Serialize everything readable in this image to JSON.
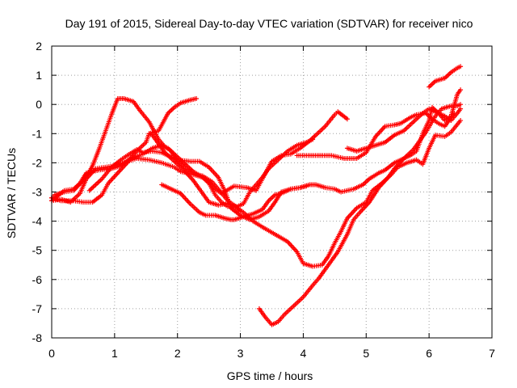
{
  "chart_data": {
    "type": "scatter",
    "title": "Day 191 of 2015, Sidereal Day-to-day VTEC variation (SDTVAR) for receiver nico",
    "xlabel": "GPS time / hours",
    "ylabel": "SDTVAR / TECUs",
    "xlim": [
      0,
      7
    ],
    "ylim": [
      -8,
      2
    ],
    "xticks": [
      "0",
      "1",
      "2",
      "3",
      "4",
      "5",
      "6",
      "7"
    ],
    "yticks": [
      "2",
      "1",
      "0",
      "-1",
      "-2",
      "-3",
      "-4",
      "-5",
      "-6",
      "-7",
      "-8"
    ],
    "grid": true,
    "marker": "plus",
    "color": "#ff0000",
    "series": [
      {
        "points": [
          [
            0.0,
            -3.3
          ],
          [
            0.2,
            -2.95
          ],
          [
            0.35,
            -2.9
          ],
          [
            0.45,
            -2.7
          ],
          [
            0.55,
            -2.35
          ],
          [
            0.75,
            -2.25
          ],
          [
            0.95,
            -2.2
          ],
          [
            1.1,
            -2.1
          ],
          [
            1.25,
            -1.85
          ],
          [
            1.45,
            -1.7
          ],
          [
            1.6,
            -1.5
          ],
          [
            1.75,
            -1.4
          ],
          [
            1.85,
            -1.5
          ],
          [
            2.05,
            -1.9
          ],
          [
            2.25,
            -2.3
          ],
          [
            2.45,
            -2.55
          ],
          [
            2.6,
            -2.9
          ],
          [
            2.7,
            -3.05
          ],
          [
            2.9,
            -2.8
          ],
          [
            3.1,
            -2.85
          ],
          [
            3.25,
            -2.95
          ],
          [
            3.35,
            -2.55
          ],
          [
            3.5,
            -1.95
          ],
          [
            3.65,
            -1.75
          ],
          [
            3.8,
            -1.7
          ],
          [
            3.95,
            -1.5
          ],
          [
            4.1,
            -1.25
          ],
          [
            4.2,
            -1.05
          ],
          [
            4.35,
            -0.75
          ],
          [
            4.5,
            -0.35
          ],
          [
            4.55,
            -0.25
          ],
          [
            4.7,
            -0.5
          ]
        ]
      },
      {
        "points": [
          [
            0.0,
            -3.3
          ],
          [
            0.15,
            -3.25
          ],
          [
            0.3,
            -3.35
          ],
          [
            0.45,
            -3.05
          ],
          [
            0.55,
            -2.55
          ],
          [
            0.7,
            -2.2
          ],
          [
            0.85,
            -2.15
          ],
          [
            1.0,
            -2.1
          ],
          [
            1.15,
            -2.0
          ],
          [
            1.35,
            -1.85
          ],
          [
            1.55,
            -1.9
          ],
          [
            1.75,
            -2.0
          ],
          [
            1.95,
            -2.15
          ],
          [
            2.05,
            -2.3
          ],
          [
            2.25,
            -2.4
          ],
          [
            2.4,
            -2.5
          ],
          [
            2.5,
            -2.7
          ],
          [
            2.6,
            -3.1
          ],
          [
            2.7,
            -3.35
          ],
          [
            2.8,
            -3.5
          ],
          [
            2.95,
            -3.55
          ],
          [
            3.05,
            -3.7
          ],
          [
            3.2,
            -4.0
          ],
          [
            3.35,
            -4.2
          ],
          [
            3.55,
            -4.45
          ],
          [
            3.75,
            -4.7
          ],
          [
            3.9,
            -5.05
          ],
          [
            4.0,
            -5.45
          ],
          [
            4.15,
            -5.55
          ],
          [
            4.3,
            -5.5
          ],
          [
            4.4,
            -5.2
          ],
          [
            4.5,
            -4.75
          ],
          [
            4.6,
            -4.35
          ],
          [
            4.7,
            -3.9
          ],
          [
            4.85,
            -3.55
          ],
          [
            5.0,
            -3.35
          ],
          [
            5.1,
            -2.95
          ],
          [
            5.25,
            -2.7
          ],
          [
            5.4,
            -2.4
          ],
          [
            5.5,
            -2.15
          ],
          [
            5.65,
            -2.0
          ],
          [
            5.8,
            -1.9
          ],
          [
            5.9,
            -2.05
          ],
          [
            6.0,
            -1.5
          ],
          [
            6.1,
            -1.05
          ],
          [
            6.25,
            -1.1
          ],
          [
            6.35,
            -0.95
          ],
          [
            6.5,
            -0.55
          ]
        ]
      },
      {
        "points": [
          [
            0.0,
            -3.2
          ],
          [
            0.15,
            -3.3
          ],
          [
            0.35,
            -3.3
          ],
          [
            0.5,
            -3.35
          ],
          [
            0.65,
            -3.35
          ],
          [
            0.8,
            -3.1
          ],
          [
            0.9,
            -2.7
          ],
          [
            1.05,
            -2.35
          ],
          [
            1.2,
            -2.0
          ],
          [
            1.35,
            -1.6
          ],
          [
            1.5,
            -1.3
          ],
          [
            1.55,
            -1.0
          ],
          [
            1.6,
            -1.05
          ],
          [
            1.7,
            -1.35
          ],
          [
            1.8,
            -1.65
          ],
          [
            1.95,
            -1.95
          ],
          [
            2.1,
            -2.25
          ],
          [
            2.25,
            -2.6
          ],
          [
            2.4,
            -3.05
          ],
          [
            2.5,
            -3.35
          ],
          [
            2.65,
            -3.45
          ],
          [
            2.8,
            -3.4
          ],
          [
            2.95,
            -3.5
          ],
          [
            3.05,
            -3.4
          ],
          [
            3.15,
            -3.0
          ],
          [
            3.25,
            -2.75
          ],
          [
            3.35,
            -2.5
          ],
          [
            3.45,
            -2.2
          ],
          [
            3.6,
            -1.9
          ],
          [
            3.75,
            -1.6
          ],
          [
            3.9,
            -1.4
          ],
          [
            4.05,
            -1.3
          ],
          [
            4.15,
            -1.2
          ]
        ]
      },
      {
        "points": [
          [
            0.0,
            -3.2
          ],
          [
            0.05,
            -3.1
          ],
          [
            0.2,
            -3.0
          ],
          [
            0.35,
            -2.95
          ],
          [
            0.5,
            -2.6
          ],
          [
            0.6,
            -2.3
          ],
          [
            0.65,
            -2.1
          ],
          [
            0.75,
            -1.55
          ],
          [
            0.85,
            -0.95
          ],
          [
            0.95,
            -0.35
          ],
          [
            1.05,
            0.2
          ],
          [
            1.15,
            0.2
          ],
          [
            1.3,
            0.1
          ],
          [
            1.4,
            -0.2
          ],
          [
            1.55,
            -0.6
          ],
          [
            1.7,
            -1.2
          ],
          [
            1.8,
            -1.45
          ],
          [
            1.9,
            -1.6
          ],
          [
            2.0,
            -1.95
          ],
          [
            2.1,
            -2.15
          ],
          [
            2.2,
            -2.3
          ],
          [
            2.3,
            -2.4
          ],
          [
            2.4,
            -2.45
          ],
          [
            2.55,
            -2.65
          ],
          [
            2.65,
            -2.9
          ],
          [
            2.8,
            -3.3
          ],
          [
            2.9,
            -3.45
          ],
          [
            3.0,
            -3.65
          ]
        ]
      },
      {
        "points": [
          [
            0.6,
            -2.95
          ],
          [
            0.8,
            -2.55
          ],
          [
            0.95,
            -2.15
          ],
          [
            1.1,
            -1.9
          ],
          [
            1.2,
            -1.75
          ],
          [
            1.35,
            -1.55
          ],
          [
            1.45,
            -1.65
          ],
          [
            1.6,
            -1.6
          ],
          [
            1.75,
            -1.65
          ],
          [
            1.85,
            -1.75
          ],
          [
            2.0,
            -1.9
          ],
          [
            2.2,
            -1.95
          ],
          [
            2.35,
            -1.95
          ],
          [
            2.5,
            -2.15
          ],
          [
            2.65,
            -2.5
          ],
          [
            2.75,
            -2.95
          ],
          [
            2.85,
            -3.55
          ],
          [
            3.0,
            -3.8
          ],
          [
            3.15,
            -3.95
          ],
          [
            3.3,
            -3.85
          ],
          [
            3.45,
            -3.65
          ],
          [
            3.55,
            -3.35
          ],
          [
            3.65,
            -3.0
          ],
          [
            3.8,
            -2.9
          ],
          [
            3.95,
            -2.85
          ],
          [
            4.1,
            -2.75
          ],
          [
            4.2,
            -2.75
          ],
          [
            4.35,
            -2.85
          ],
          [
            4.5,
            -2.9
          ],
          [
            4.6,
            -3.0
          ],
          [
            4.8,
            -2.9
          ],
          [
            4.95,
            -2.75
          ],
          [
            5.05,
            -2.55
          ],
          [
            5.2,
            -2.35
          ],
          [
            5.3,
            -2.25
          ],
          [
            5.45,
            -2.0
          ],
          [
            5.6,
            -1.85
          ],
          [
            5.7,
            -1.75
          ],
          [
            5.8,
            -1.6
          ],
          [
            5.9,
            -1.0
          ],
          [
            6.0,
            -0.55
          ],
          [
            6.05,
            -0.1
          ],
          [
            6.15,
            -0.3
          ],
          [
            6.25,
            -0.55
          ],
          [
            6.35,
            -0.4
          ],
          [
            6.45,
            0.35
          ],
          [
            6.5,
            0.5
          ]
        ]
      },
      {
        "points": [
          [
            1.75,
            -2.75
          ],
          [
            1.9,
            -2.9
          ],
          [
            2.05,
            -3.05
          ],
          [
            2.2,
            -3.4
          ],
          [
            2.35,
            -3.7
          ],
          [
            2.45,
            -3.8
          ],
          [
            2.6,
            -3.8
          ],
          [
            2.75,
            -3.9
          ],
          [
            2.85,
            -3.95
          ],
          [
            2.9,
            -3.95
          ],
          [
            3.05,
            -3.85
          ],
          [
            3.2,
            -3.75
          ],
          [
            3.35,
            -3.6
          ],
          [
            3.45,
            -3.3
          ],
          [
            3.55,
            -3.1
          ],
          [
            3.65,
            -3.05
          ],
          [
            3.8,
            -2.9
          ],
          [
            3.95,
            -2.85
          ],
          [
            4.05,
            -2.8
          ]
        ]
      },
      {
        "points": [
          [
            1.55,
            -1.0
          ],
          [
            1.7,
            -0.9
          ],
          [
            1.85,
            -0.3
          ],
          [
            1.95,
            -0.1
          ],
          [
            2.05,
            0.05
          ],
          [
            2.2,
            0.15
          ],
          [
            2.3,
            0.2
          ]
        ]
      },
      {
        "points": [
          [
            3.3,
            -7.0
          ],
          [
            3.4,
            -7.3
          ],
          [
            3.5,
            -7.55
          ],
          [
            3.6,
            -7.45
          ],
          [
            3.7,
            -7.2
          ],
          [
            3.85,
            -6.9
          ],
          [
            4.0,
            -6.6
          ],
          [
            4.15,
            -6.2
          ],
          [
            4.25,
            -5.95
          ],
          [
            4.4,
            -5.5
          ],
          [
            4.55,
            -5.05
          ],
          [
            4.7,
            -4.45
          ],
          [
            4.8,
            -3.95
          ],
          [
            4.9,
            -3.7
          ],
          [
            5.05,
            -3.35
          ],
          [
            5.2,
            -2.85
          ],
          [
            5.35,
            -2.5
          ],
          [
            5.45,
            -2.2
          ],
          [
            5.6,
            -1.85
          ],
          [
            5.75,
            -1.55
          ],
          [
            5.85,
            -1.25
          ],
          [
            5.95,
            -0.95
          ],
          [
            6.1,
            -0.4
          ],
          [
            6.2,
            -0.15
          ],
          [
            6.35,
            -0.05
          ],
          [
            6.45,
            -0.05
          ],
          [
            6.5,
            0.0
          ]
        ]
      },
      {
        "points": [
          [
            4.7,
            -1.5
          ],
          [
            4.85,
            -1.6
          ],
          [
            5.0,
            -1.5
          ],
          [
            5.15,
            -1.4
          ],
          [
            5.3,
            -1.3
          ],
          [
            5.45,
            -1.05
          ],
          [
            5.6,
            -0.9
          ],
          [
            5.75,
            -0.6
          ],
          [
            5.9,
            -0.3
          ],
          [
            6.0,
            -0.15
          ],
          [
            6.1,
            -0.25
          ],
          [
            6.25,
            -0.4
          ],
          [
            6.35,
            -0.55
          ],
          [
            6.45,
            -0.3
          ],
          [
            6.5,
            -0.15
          ]
        ]
      },
      {
        "points": [
          [
            3.9,
            -1.75
          ],
          [
            4.05,
            -1.75
          ],
          [
            4.25,
            -1.75
          ],
          [
            4.45,
            -1.75
          ],
          [
            4.65,
            -1.85
          ],
          [
            4.85,
            -1.85
          ],
          [
            5.0,
            -1.65
          ],
          [
            5.15,
            -1.1
          ],
          [
            5.3,
            -0.75
          ],
          [
            5.45,
            -0.7
          ],
          [
            5.55,
            -0.65
          ],
          [
            5.7,
            -0.45
          ],
          [
            5.8,
            -0.35
          ],
          [
            5.95,
            -0.3
          ],
          [
            6.05,
            -0.5
          ],
          [
            6.15,
            -0.65
          ],
          [
            6.25,
            -0.75
          ],
          [
            6.35,
            -0.45
          ],
          [
            6.4,
            -0.3
          ]
        ]
      },
      {
        "points": [
          [
            6.0,
            0.6
          ],
          [
            6.1,
            0.8
          ],
          [
            6.25,
            0.9
          ],
          [
            6.35,
            1.1
          ],
          [
            6.45,
            1.25
          ],
          [
            6.5,
            1.3
          ]
        ]
      }
    ]
  }
}
